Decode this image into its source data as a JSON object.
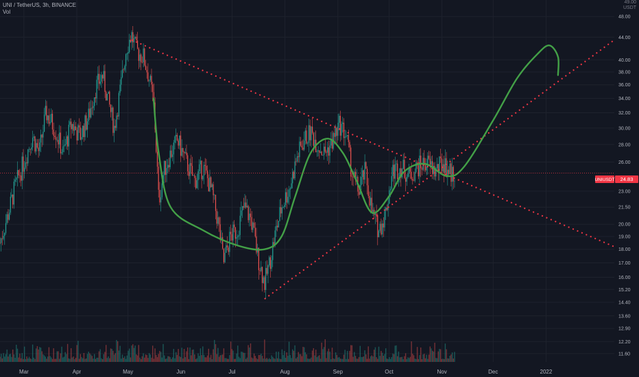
{
  "header": {
    "title": "UNI / TetherUS, 3h, BINANCE",
    "indicator": "Vol"
  },
  "axis": {
    "unit": "USDT",
    "top_tick": "49.00"
  },
  "price_badge": {
    "symbol": "UNIUSDT",
    "value": "24.83",
    "price": 24.83,
    "color": "#f23645"
  },
  "colors": {
    "up": "#26a69a",
    "down": "#ef5350",
    "trendline": "#f23645",
    "drawing": "#43a047",
    "background": "#131722",
    "grid": "#1e222d"
  },
  "chart_data": {
    "type": "candlestick",
    "scale": "log",
    "y_ticks": [
      "48.00",
      "44.00",
      "40.00",
      "38.00",
      "36.00",
      "34.00",
      "32.00",
      "30.00",
      "28.00",
      "26.00",
      "23.00",
      "21.50",
      "20.00",
      "19.00",
      "18.00",
      "17.00",
      "16.00",
      "15.20",
      "14.40",
      "13.60",
      "12.90",
      "12.20",
      "11.60"
    ],
    "x_ticks": [
      "Mar",
      "Apr",
      "May",
      "Jun",
      "Jul",
      "Aug",
      "Sep",
      "Oct",
      "Nov",
      "Dec",
      "2022"
    ],
    "x_domain": [
      "2021-02-15",
      "2022-02-10"
    ],
    "y_domain": [
      11.2,
      50.0
    ],
    "price_path": [
      {
        "date": "2021-02-15",
        "price": 18.5
      },
      {
        "date": "2021-02-20",
        "price": 21.0
      },
      {
        "date": "2021-02-24",
        "price": 23.5
      },
      {
        "date": "2021-03-01",
        "price": 26.0
      },
      {
        "date": "2021-03-06",
        "price": 29.0
      },
      {
        "date": "2021-03-10",
        "price": 27.0
      },
      {
        "date": "2021-03-14",
        "price": 32.0
      },
      {
        "date": "2021-03-19",
        "price": 30.0
      },
      {
        "date": "2021-03-24",
        "price": 27.0
      },
      {
        "date": "2021-03-29",
        "price": 30.5
      },
      {
        "date": "2021-04-03",
        "price": 29.0
      },
      {
        "date": "2021-04-08",
        "price": 31.5
      },
      {
        "date": "2021-04-12",
        "price": 35.5
      },
      {
        "date": "2021-04-16",
        "price": 37.5
      },
      {
        "date": "2021-04-19",
        "price": 34.0
      },
      {
        "date": "2021-04-23",
        "price": 30.0
      },
      {
        "date": "2021-04-27",
        "price": 36.0
      },
      {
        "date": "2021-04-30",
        "price": 42.0
      },
      {
        "date": "2021-05-03",
        "price": 44.5
      },
      {
        "date": "2021-05-06",
        "price": 41.5
      },
      {
        "date": "2021-05-10",
        "price": 40.5
      },
      {
        "date": "2021-05-13",
        "price": 37.5
      },
      {
        "date": "2021-05-16",
        "price": 33.5
      },
      {
        "date": "2021-05-19",
        "price": 22.0
      },
      {
        "date": "2021-05-22",
        "price": 25.0
      },
      {
        "date": "2021-05-26",
        "price": 27.0
      },
      {
        "date": "2021-05-30",
        "price": 28.5
      },
      {
        "date": "2021-06-04",
        "price": 26.0
      },
      {
        "date": "2021-06-09",
        "price": 24.0
      },
      {
        "date": "2021-06-14",
        "price": 25.5
      },
      {
        "date": "2021-06-19",
        "price": 23.0
      },
      {
        "date": "2021-06-23",
        "price": 20.0
      },
      {
        "date": "2021-06-26",
        "price": 17.0
      },
      {
        "date": "2021-06-30",
        "price": 19.0
      },
      {
        "date": "2021-07-04",
        "price": 19.5
      },
      {
        "date": "2021-07-08",
        "price": 21.5
      },
      {
        "date": "2021-07-12",
        "price": 20.5
      },
      {
        "date": "2021-07-16",
        "price": 17.5
      },
      {
        "date": "2021-07-20",
        "price": 15.6
      },
      {
        "date": "2021-07-23",
        "price": 17.0
      },
      {
        "date": "2021-07-26",
        "price": 19.0
      },
      {
        "date": "2021-07-30",
        "price": 21.5
      },
      {
        "date": "2021-08-04",
        "price": 23.5
      },
      {
        "date": "2021-08-08",
        "price": 26.5
      },
      {
        "date": "2021-08-12",
        "price": 28.5
      },
      {
        "date": "2021-08-16",
        "price": 29.5
      },
      {
        "date": "2021-08-20",
        "price": 28.0
      },
      {
        "date": "2021-08-24",
        "price": 27.0
      },
      {
        "date": "2021-08-28",
        "price": 28.0
      },
      {
        "date": "2021-09-02",
        "price": 30.5
      },
      {
        "date": "2021-09-06",
        "price": 29.0
      },
      {
        "date": "2021-09-09",
        "price": 25.0
      },
      {
        "date": "2021-09-13",
        "price": 23.0
      },
      {
        "date": "2021-09-17",
        "price": 25.0
      },
      {
        "date": "2021-09-21",
        "price": 21.0
      },
      {
        "date": "2021-09-25",
        "price": 19.5
      },
      {
        "date": "2021-09-29",
        "price": 21.0
      },
      {
        "date": "2021-10-03",
        "price": 25.0
      },
      {
        "date": "2021-10-08",
        "price": 25.5
      },
      {
        "date": "2021-10-13",
        "price": 24.5
      },
      {
        "date": "2021-10-18",
        "price": 25.5
      },
      {
        "date": "2021-10-23",
        "price": 26.0
      },
      {
        "date": "2021-10-28",
        "price": 25.0
      },
      {
        "date": "2021-11-02",
        "price": 26.0
      },
      {
        "date": "2021-11-06",
        "price": 24.8
      },
      {
        "date": "2021-11-09",
        "price": 24.83
      }
    ],
    "resistance_line": {
      "start": {
        "date": "2021-05-03",
        "price": 43.5
      },
      "end": {
        "date": "2022-02-10",
        "price": 18.2
      }
    },
    "support_line": {
      "start": {
        "date": "2021-07-20",
        "price": 14.6
      },
      "end": {
        "date": "2022-02-10",
        "price": 43.5
      }
    },
    "projection_curve": [
      {
        "date": "2021-05-16",
        "price": 34.0
      },
      {
        "date": "2021-05-19",
        "price": 27.0
      },
      {
        "date": "2021-05-26",
        "price": 21.5
      },
      {
        "date": "2021-06-14",
        "price": 19.5
      },
      {
        "date": "2021-07-04",
        "price": 18.3
      },
      {
        "date": "2021-07-20",
        "price": 18.0
      },
      {
        "date": "2021-07-30",
        "price": 19.0
      },
      {
        "date": "2021-08-07",
        "price": 22.5
      },
      {
        "date": "2021-08-16",
        "price": 27.0
      },
      {
        "date": "2021-08-26",
        "price": 28.7
      },
      {
        "date": "2021-09-04",
        "price": 27.0
      },
      {
        "date": "2021-09-12",
        "price": 24.0
      },
      {
        "date": "2021-09-21",
        "price": 21.0
      },
      {
        "date": "2021-10-01",
        "price": 22.5
      },
      {
        "date": "2021-10-10",
        "price": 25.0
      },
      {
        "date": "2021-10-22",
        "price": 25.8
      },
      {
        "date": "2021-11-04",
        "price": 24.5
      },
      {
        "date": "2021-11-14",
        "price": 25.5
      },
      {
        "date": "2021-12-01",
        "price": 31.0
      },
      {
        "date": "2021-12-15",
        "price": 37.0
      },
      {
        "date": "2021-12-27",
        "price": 41.0
      },
      {
        "date": "2022-01-03",
        "price": 42.5
      },
      {
        "date": "2022-01-08",
        "price": 40.5
      },
      {
        "date": "2022-01-08",
        "price": 37.5
      }
    ]
  }
}
